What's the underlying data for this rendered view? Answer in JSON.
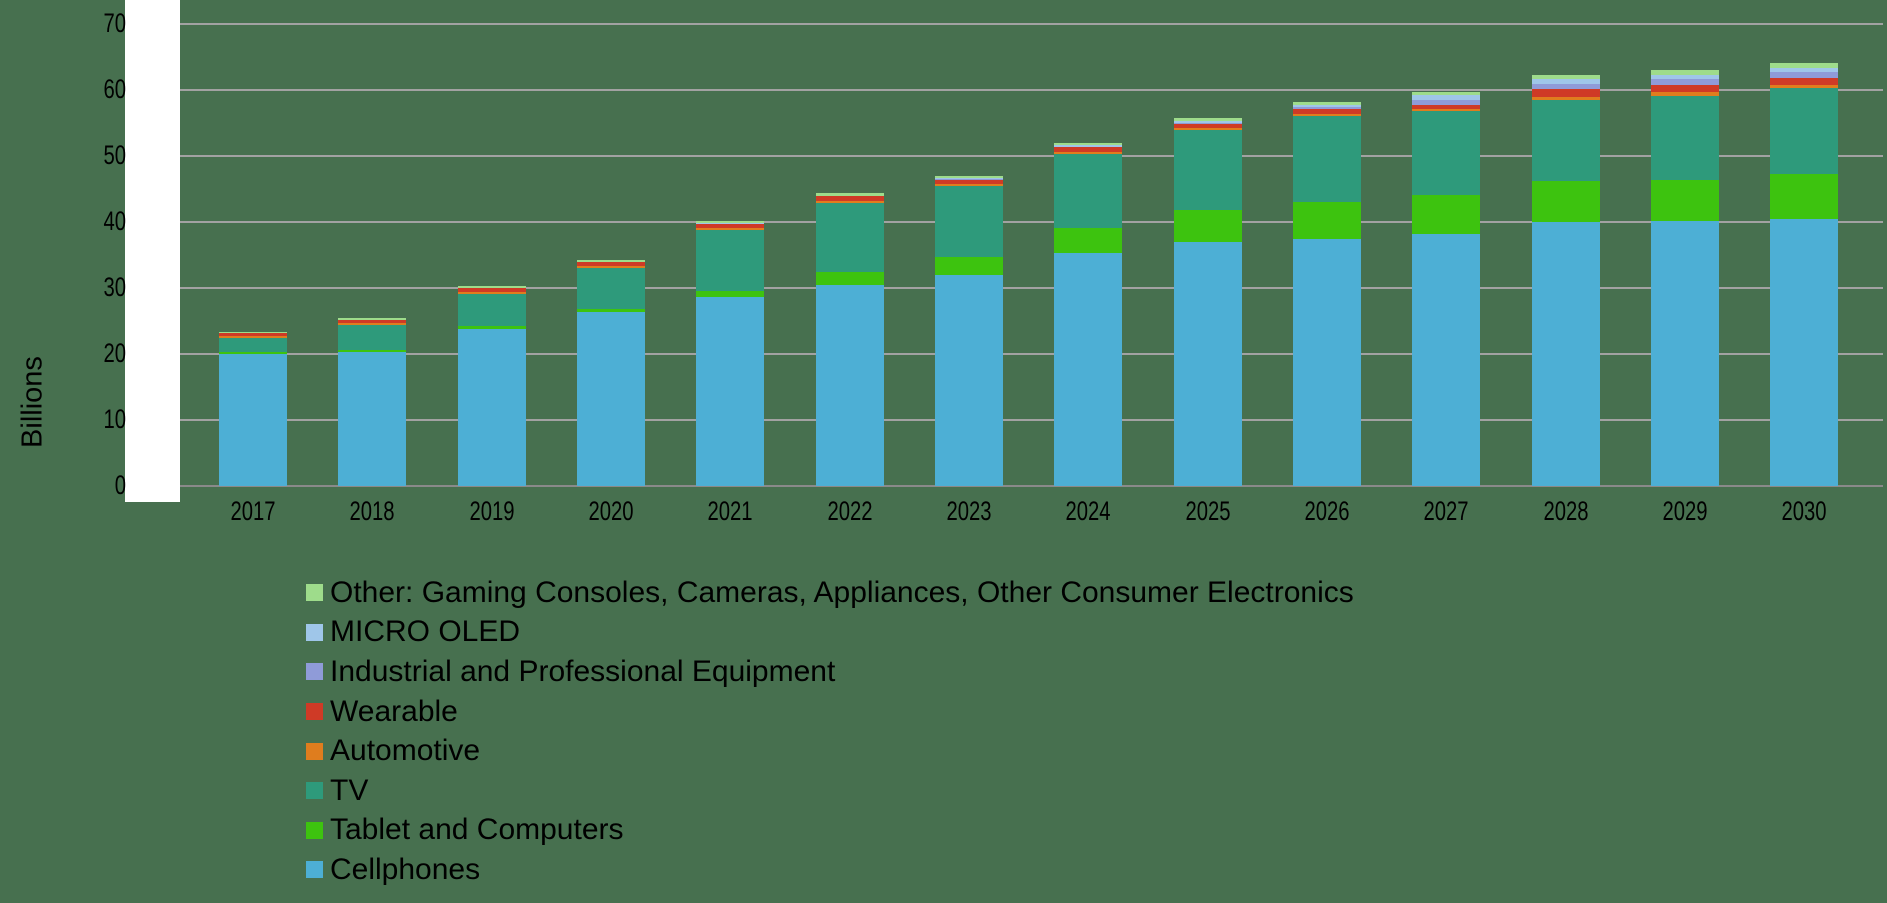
{
  "colors": {
    "background": "#47704F",
    "plot_strip": "#FFFFFF",
    "gridline": "#A2A2A2",
    "axis_line": "#8A8A8A",
    "text": "#000000"
  },
  "chart_data": {
    "type": "bar",
    "stacked": true,
    "title": "",
    "xlabel": "",
    "ylabel": "Billions",
    "ylim": [
      0,
      70
    ],
    "y_ticks": [
      0,
      10,
      20,
      30,
      40,
      50,
      60,
      70
    ],
    "grid": true,
    "legend_position": "bottom-left",
    "legend_order": "reverse-of-stack (top entry = top stack segment)",
    "categories": [
      "2017",
      "2018",
      "2019",
      "2020",
      "2021",
      "2022",
      "2023",
      "2024",
      "2025",
      "2026",
      "2027",
      "2028",
      "2029",
      "2030"
    ],
    "series": [
      {
        "name": "Cellphones",
        "color": "#4DAFD5",
        "values": [
          20.0,
          20.3,
          23.8,
          26.3,
          28.7,
          30.4,
          32.0,
          35.3,
          37.0,
          37.4,
          38.2,
          40.0,
          40.2,
          40.5
        ]
      },
      {
        "name": "Tablet and Computers",
        "color": "#3DC30F",
        "values": [
          0.3,
          0.3,
          0.4,
          0.5,
          0.9,
          2.0,
          2.7,
          3.8,
          4.9,
          5.6,
          5.9,
          6.2,
          6.2,
          6.8
        ]
      },
      {
        "name": "TV",
        "color": "#2E9A7B",
        "values": [
          2.1,
          3.8,
          4.9,
          6.3,
          9.2,
          10.5,
          10.7,
          11.2,
          12.0,
          13.0,
          12.8,
          12.3,
          12.7,
          13.0
        ]
      },
      {
        "name": "Automotive",
        "color": "#DF7D1E",
        "values": [
          0.3,
          0.3,
          0.3,
          0.3,
          0.3,
          0.3,
          0.3,
          0.3,
          0.3,
          0.4,
          0.3,
          0.5,
          0.6,
          0.5
        ]
      },
      {
        "name": "Wearable",
        "color": "#CF3A26",
        "values": [
          0.5,
          0.5,
          0.6,
          0.5,
          0.6,
          0.7,
          0.7,
          0.7,
          0.7,
          0.8,
          0.6,
          1.1,
          1.1,
          1.0
        ]
      },
      {
        "name": "Industrial and Professional Equipment",
        "color": "#8F9BD8",
        "values": [
          0.0,
          0.0,
          0.0,
          0.0,
          0.0,
          0.0,
          0.1,
          0.1,
          0.1,
          0.2,
          0.7,
          0.8,
          0.8,
          0.9
        ]
      },
      {
        "name": "MICRO OLED",
        "color": "#9FC6E9",
        "values": [
          0.0,
          0.0,
          0.0,
          0.1,
          0.1,
          0.1,
          0.1,
          0.2,
          0.3,
          0.4,
          0.8,
          0.7,
          0.7,
          0.6
        ]
      },
      {
        "name": "Other: Gaming Consoles, Cameras, Appliances, Other Consumer Electronics",
        "color": "#9EDC8B",
        "values": [
          0.2,
          0.2,
          0.3,
          0.3,
          0.4,
          0.4,
          0.4,
          0.4,
          0.5,
          0.4,
          0.4,
          0.7,
          0.8,
          0.8
        ]
      }
    ],
    "totals": [
      23.4,
      25.4,
      30.3,
      34.3,
      40.2,
      44.4,
      47.0,
      52.0,
      55.8,
      58.2,
      59.7,
      62.3,
      63.1,
      64.1
    ]
  }
}
